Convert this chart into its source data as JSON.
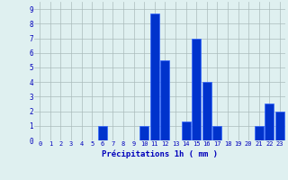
{
  "hours": [
    0,
    1,
    2,
    3,
    4,
    5,
    6,
    7,
    8,
    9,
    10,
    11,
    12,
    13,
    14,
    15,
    16,
    17,
    18,
    19,
    20,
    21,
    22,
    23
  ],
  "values": [
    0,
    0,
    0,
    0,
    0,
    0,
    1,
    0,
    0,
    0,
    1,
    8.7,
    5.5,
    0,
    1.3,
    7,
    4,
    1,
    0,
    0,
    0,
    1,
    2.5,
    2
  ],
  "bar_color": "#0033cc",
  "bar_edge_color": "#3366ff",
  "background_color": "#dff0f0",
  "grid_color": "#aabbbb",
  "xlabel": "Précipitations 1h ( mm )",
  "xlabel_color": "#0000bb",
  "tick_color": "#0000bb",
  "ylim": [
    0,
    9.5
  ],
  "yticks": [
    0,
    1,
    2,
    3,
    4,
    5,
    6,
    7,
    8,
    9
  ]
}
